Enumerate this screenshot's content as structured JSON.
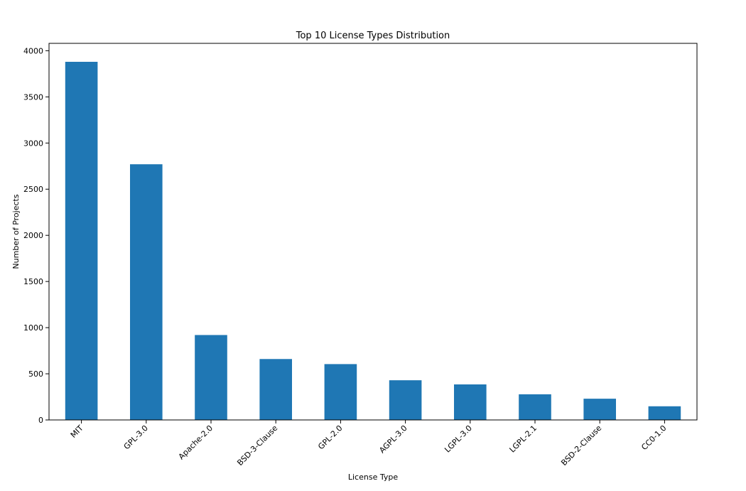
{
  "chart_data": {
    "type": "bar",
    "title": "Top 10 License Types Distribution",
    "xlabel": "License Type",
    "ylabel": "Number of Projects",
    "categories": [
      "MIT",
      "GPL-3.0",
      "Apache-2.0",
      "BSD-3-Clause",
      "GPL-2.0",
      "AGPL-3.0",
      "LGPL-3.0",
      "LGPL-2.1",
      "BSD-2-Clause",
      "CC0-1.0"
    ],
    "values": [
      3880,
      2770,
      920,
      660,
      605,
      430,
      385,
      278,
      230,
      148
    ],
    "ylim": [
      0,
      4080
    ],
    "yticks": [
      0,
      500,
      1000,
      1500,
      2000,
      2500,
      3000,
      3500,
      4000
    ],
    "bar_color": "#1f77b4",
    "grid": false,
    "legend": "none"
  }
}
